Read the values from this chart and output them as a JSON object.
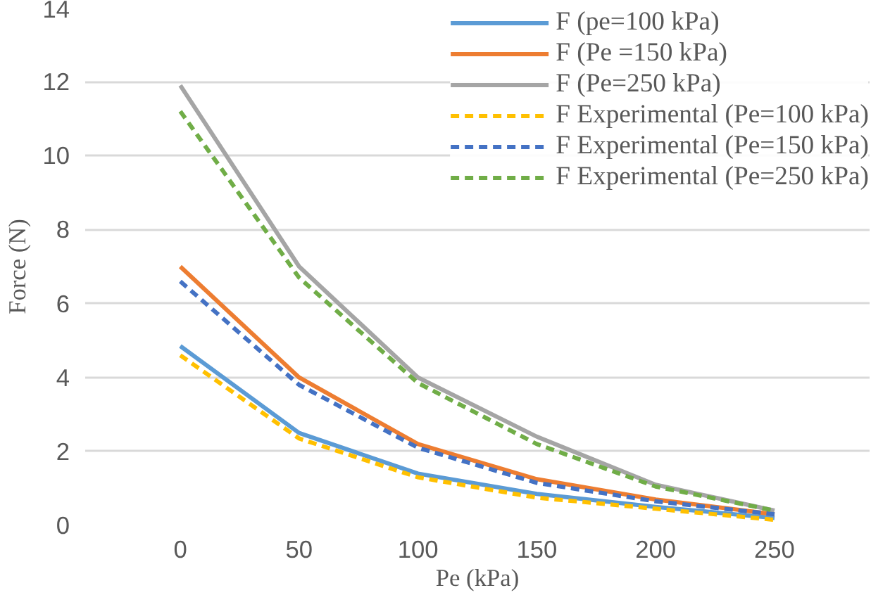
{
  "chart_data": {
    "type": "line",
    "xlabel": "Pe (kPa)",
    "ylabel": "Force (N)",
    "categories": [
      "0",
      "50",
      "100",
      "150",
      "200",
      "250"
    ],
    "ylim": [
      0,
      14
    ],
    "yticks": [
      0,
      2,
      4,
      6,
      8,
      10,
      12,
      14
    ],
    "grid": "y",
    "legend": "top right",
    "series": [
      {
        "name": "F (pe=100 kPa)",
        "color": "#5b9bd5",
        "line_style": "solid",
        "values": [
          4.85,
          2.5,
          1.4,
          0.85,
          0.5,
          0.2
        ]
      },
      {
        "name": "F (Pe =150 kPa)",
        "color": "#ed7d31",
        "line_style": "solid",
        "values": [
          7.0,
          4.0,
          2.2,
          1.25,
          0.7,
          0.3
        ]
      },
      {
        "name": "F (Pe=250 kPa)",
        "color": "#a5a5a5",
        "line_style": "solid",
        "values": [
          11.9,
          7.0,
          4.0,
          2.4,
          1.1,
          0.4
        ]
      },
      {
        "name": "F Experimental (Pe=100 kPa)",
        "color": "#ffc000",
        "line_style": "dashed",
        "values": [
          4.6,
          2.35,
          1.3,
          0.75,
          0.45,
          0.15
        ]
      },
      {
        "name": "F Experimental (Pe=150 kPa)",
        "color": "#4472c4",
        "line_style": "dashed",
        "values": [
          6.6,
          3.8,
          2.1,
          1.15,
          0.65,
          0.3
        ]
      },
      {
        "name": "F Experimental (Pe=250 kPa)",
        "color": "#70ad47",
        "line_style": "dashed",
        "values": [
          11.2,
          6.7,
          3.85,
          2.2,
          1.05,
          0.4
        ]
      }
    ]
  }
}
